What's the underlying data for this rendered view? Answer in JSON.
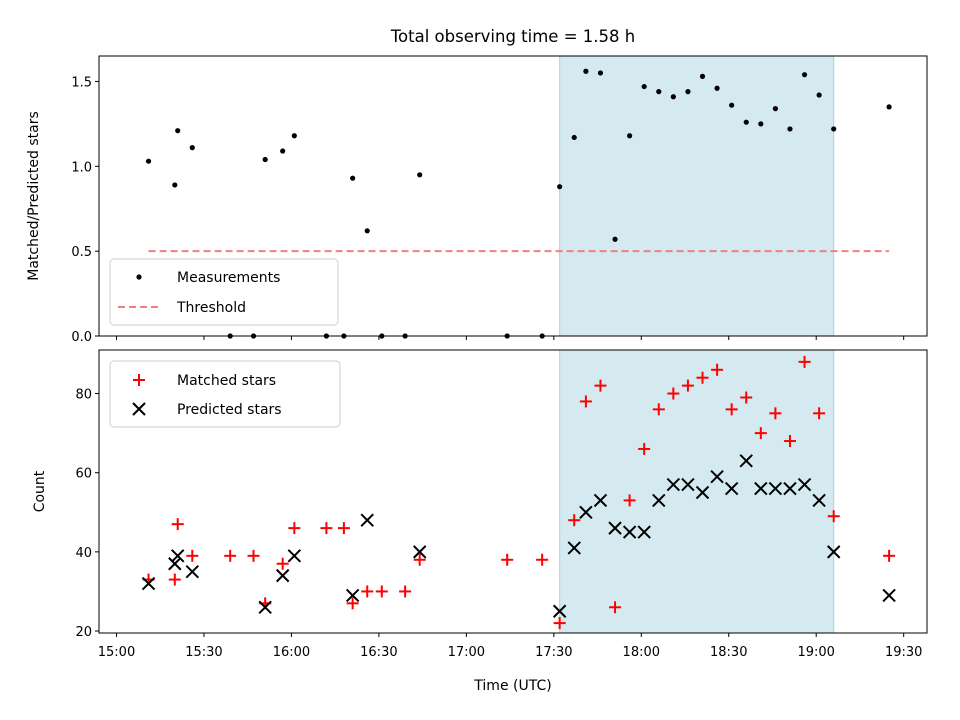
{
  "chart_data": [
    {
      "type": "scatter",
      "title": "Total observing time = 1.58 h",
      "ylabel": "Matched/Predicted stars",
      "ylim": [
        0,
        1.65
      ],
      "yticks": [
        "0.0",
        "0.5",
        "1.0",
        "1.5"
      ],
      "highlight_span": {
        "start": "17:32",
        "end": "19:06",
        "color": "#d4eaf0"
      },
      "threshold": {
        "value": 0.5,
        "from": "15:11",
        "to": "19:25",
        "color": "#f08080"
      },
      "legend": {
        "position": "lower-left",
        "entries": [
          "Measurements",
          "Threshold"
        ]
      },
      "series": [
        {
          "name": "Measurements",
          "color": "#000000",
          "x": [
            "15:11",
            "15:20",
            "15:21",
            "15:26",
            "15:39",
            "15:47",
            "15:51",
            "15:57",
            "16:01",
            "16:12",
            "16:18",
            "16:21",
            "16:26",
            "16:31",
            "16:39",
            "16:44",
            "17:14",
            "17:26",
            "17:32",
            "17:37",
            "17:41",
            "17:46",
            "17:51",
            "17:56",
            "18:01",
            "18:06",
            "18:11",
            "18:16",
            "18:21",
            "18:26",
            "18:31",
            "18:36",
            "18:41",
            "18:46",
            "18:51",
            "18:56",
            "19:01",
            "19:06",
            "19:25"
          ],
          "y": [
            1.03,
            0.89,
            1.21,
            1.11,
            0.0,
            0.0,
            1.04,
            1.09,
            1.18,
            0.0,
            0.0,
            0.93,
            0.62,
            0.0,
            0.0,
            0.95,
            0.0,
            0.0,
            0.88,
            1.17,
            1.56,
            1.55,
            0.57,
            1.18,
            1.47,
            1.44,
            1.41,
            1.44,
            1.53,
            1.46,
            1.36,
            1.26,
            1.25,
            1.34,
            1.22,
            1.54,
            1.42,
            1.22,
            1.35
          ]
        }
      ]
    },
    {
      "type": "scatter",
      "xlabel": "Time (UTC)",
      "ylabel": "Count",
      "ylim": [
        19.5,
        91
      ],
      "yticks": [
        "20",
        "40",
        "60",
        "80"
      ],
      "xticks": [
        "15:00",
        "15:30",
        "16:00",
        "16:30",
        "17:00",
        "17:30",
        "18:00",
        "18:30",
        "19:00",
        "19:30"
      ],
      "highlight_span": {
        "start": "17:32",
        "end": "19:06",
        "color": "#d4eaf0"
      },
      "legend": {
        "position": "upper-left",
        "entries": [
          "Matched stars",
          "Predicted stars"
        ]
      },
      "series": [
        {
          "name": "Matched stars",
          "color": "#ff0000",
          "marker": "plus",
          "x": [
            "15:11",
            "15:20",
            "15:21",
            "15:26",
            "15:39",
            "15:47",
            "15:51",
            "15:57",
            "16:01",
            "16:12",
            "16:18",
            "16:21",
            "16:26",
            "16:31",
            "16:39",
            "16:44",
            "17:14",
            "17:26",
            "17:32",
            "17:37",
            "17:41",
            "17:46",
            "17:51",
            "17:56",
            "18:01",
            "18:06",
            "18:11",
            "18:16",
            "18:21",
            "18:26",
            "18:31",
            "18:36",
            "18:41",
            "18:46",
            "18:51",
            "18:56",
            "19:01",
            "19:06",
            "19:25"
          ],
          "y": [
            33,
            33,
            47,
            39,
            39,
            39,
            27,
            37,
            46,
            46,
            46,
            27,
            30,
            30,
            30,
            38,
            38,
            38,
            22,
            48,
            78,
            82,
            26,
            53,
            66,
            76,
            80,
            82,
            84,
            86,
            76,
            79,
            70,
            75,
            68,
            88,
            75,
            49,
            39
          ]
        },
        {
          "name": "Predicted stars",
          "color": "#000000",
          "marker": "x",
          "x": [
            "15:11",
            "15:20",
            "15:21",
            "15:26",
            "15:51",
            "15:57",
            "16:01",
            "16:21",
            "16:26",
            "16:44",
            "17:32",
            "17:37",
            "17:41",
            "17:46",
            "17:51",
            "17:56",
            "18:01",
            "18:06",
            "18:11",
            "18:16",
            "18:21",
            "18:26",
            "18:31",
            "18:36",
            "18:41",
            "18:46",
            "18:51",
            "18:56",
            "19:01",
            "19:06",
            "19:25"
          ],
          "y": [
            32,
            37,
            39,
            35,
            26,
            34,
            39,
            29,
            48,
            40,
            25,
            41,
            50,
            53,
            46,
            45,
            45,
            53,
            57,
            57,
            55,
            59,
            56,
            63,
            56,
            56,
            56,
            57,
            53,
            40,
            29
          ]
        }
      ]
    }
  ]
}
